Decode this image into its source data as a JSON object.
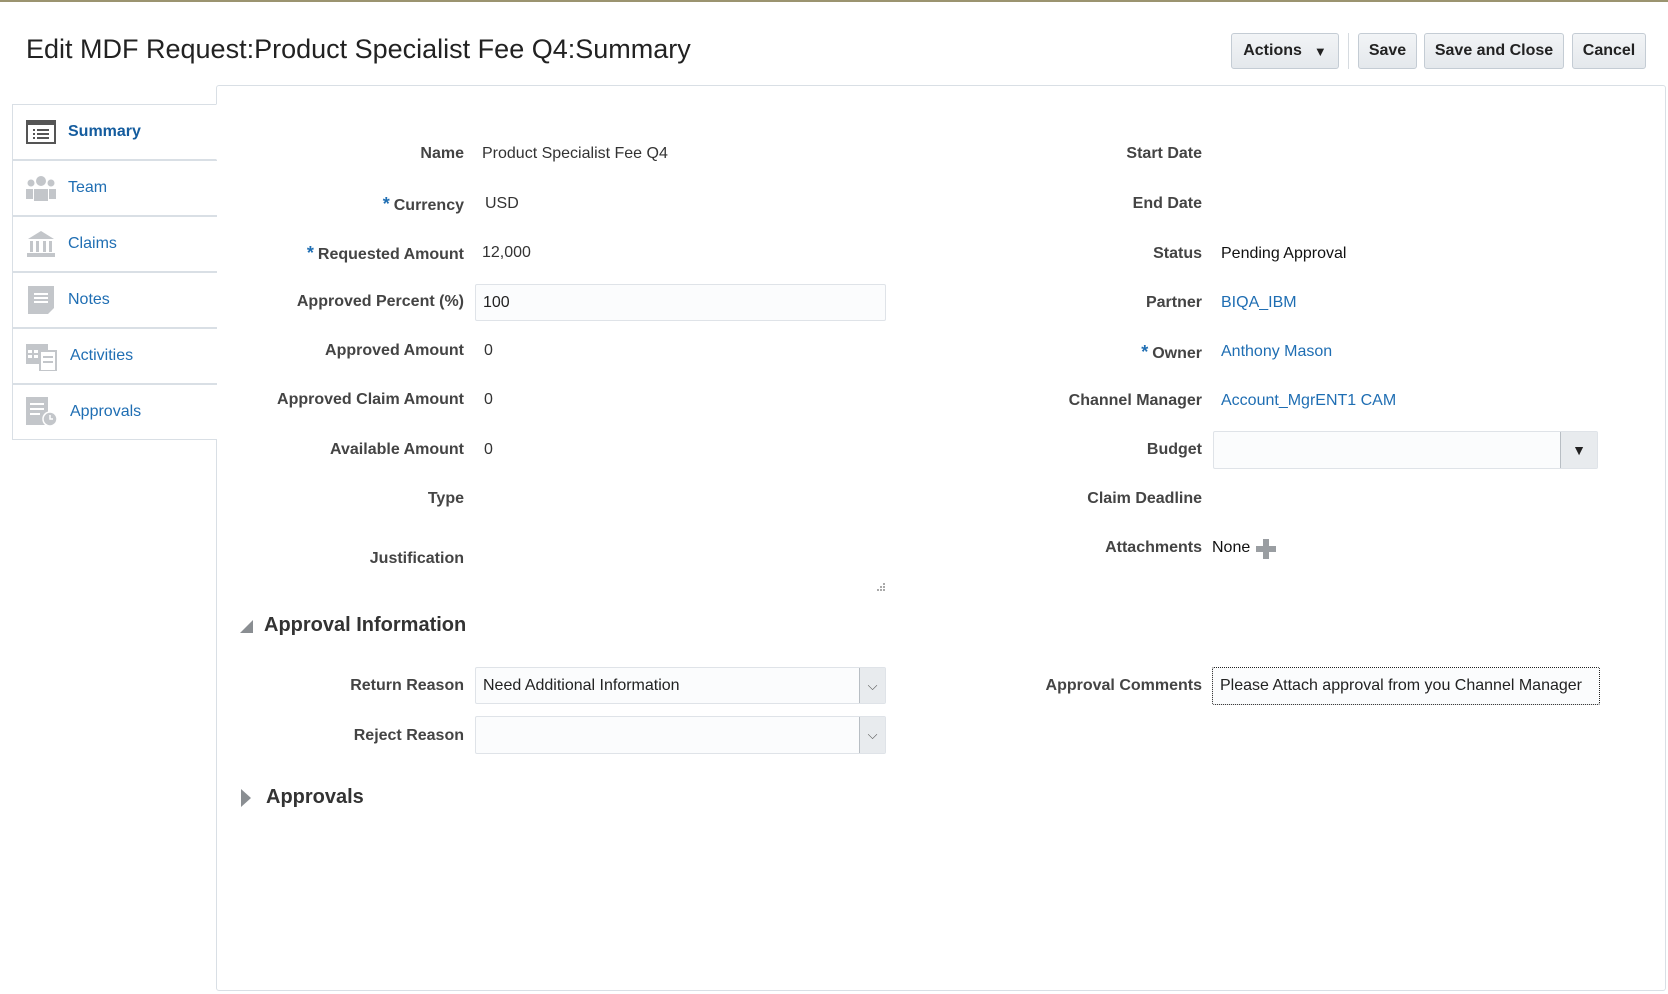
{
  "header": {
    "title": "Edit MDF Request:Product Specialist Fee Q4:Summary",
    "actions_label": "Actions",
    "save_label": "Save",
    "save_close_label": "Save and Close",
    "cancel_label": "Cancel"
  },
  "sidebar": {
    "items": [
      {
        "label": "Summary",
        "icon": "list-icon"
      },
      {
        "label": "Team",
        "icon": "team-icon"
      },
      {
        "label": "Claims",
        "icon": "bank-icon"
      },
      {
        "label": "Notes",
        "icon": "note-icon"
      },
      {
        "label": "Activities",
        "icon": "calendar-icon"
      },
      {
        "label": "Approvals",
        "icon": "approvals-icon"
      }
    ]
  },
  "form": {
    "name_label": "Name",
    "name": "Product Specialist Fee Q4",
    "currency_label": "Currency",
    "currency": "USD",
    "requested_amount_label": "Requested Amount",
    "requested_amount": "12,000",
    "approved_percent_label": "Approved Percent (%)",
    "approved_percent": "100",
    "approved_amount_label": "Approved Amount",
    "approved_amount": "0",
    "approved_claim_amount_label": "Approved Claim Amount",
    "approved_claim_amount": "0",
    "available_amount_label": "Available Amount",
    "available_amount": "0",
    "type_label": "Type",
    "justification_label": "Justification",
    "start_date_label": "Start Date",
    "end_date_label": "End Date",
    "status_label": "Status",
    "status": "Pending Approval",
    "partner_label": "Partner",
    "partner": "BIQA_IBM",
    "owner_label": "Owner",
    "owner": "Anthony Mason",
    "channel_manager_label": "Channel Manager",
    "channel_manager": "Account_MgrENT1 CAM",
    "budget_label": "Budget",
    "budget": "",
    "claim_deadline_label": "Claim Deadline",
    "attachments_label": "Attachments",
    "attachments": "None",
    "required_mark": "*"
  },
  "approval_info": {
    "title": "Approval Information",
    "return_reason_label": "Return Reason",
    "return_reason": "Need Additional Information",
    "reject_reason_label": "Reject Reason",
    "reject_reason": "",
    "approval_comments_label": "Approval Comments",
    "approval_comments": "Please Attach approval from you Channel Manager"
  },
  "approvals": {
    "title": "Approvals"
  }
}
